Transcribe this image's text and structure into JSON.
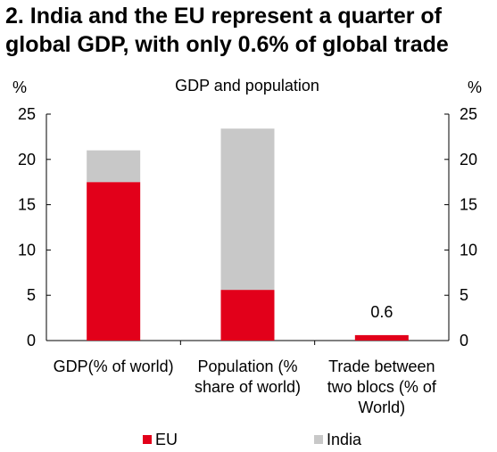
{
  "title": "2. India and the EU represent a quarter of global GDP, with only 0.6% of global trade",
  "chart_data": {
    "type": "bar",
    "stacked": true,
    "subtitle": "GDP and population",
    "ylabel_left": "%",
    "ylabel_right": "%",
    "ylim": [
      0,
      25
    ],
    "yticks": [
      0,
      5,
      10,
      15,
      20,
      25
    ],
    "categories": [
      [
        "GDP(% of world)"
      ],
      [
        "Population (%",
        "share of world)"
      ],
      [
        "Trade between",
        "two blocs (% of",
        "World)"
      ]
    ],
    "series": [
      {
        "name": "EU",
        "color": "#e2001a",
        "values": [
          17.5,
          5.6,
          0.6
        ]
      },
      {
        "name": "India",
        "color": "#c8c8c8",
        "values": [
          3.5,
          17.8,
          0
        ]
      }
    ],
    "data_labels": [
      null,
      null,
      "0.6"
    ],
    "legend_position": "bottom",
    "grid": false
  }
}
